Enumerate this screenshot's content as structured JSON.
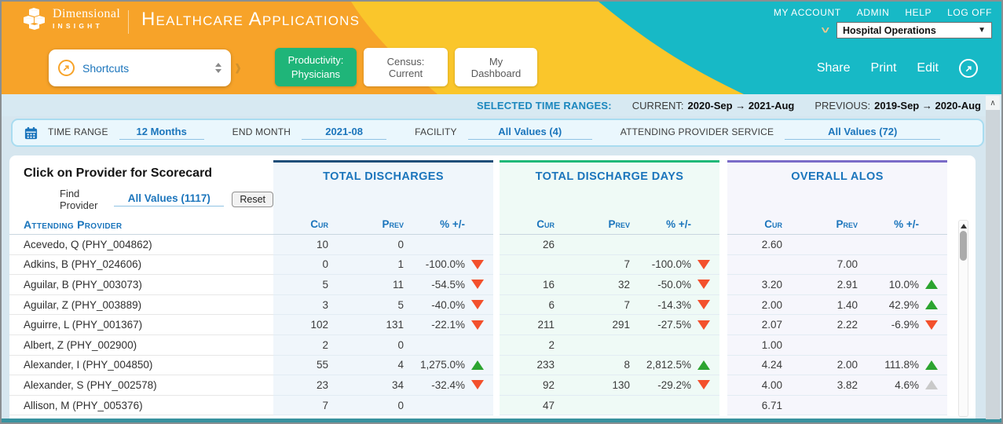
{
  "header": {
    "brand_top": "Dimensional",
    "brand_bottom": "INSIGHT",
    "app_title": "Healthcare Applications",
    "nav_links": [
      "MY ACCOUNT",
      "ADMIN",
      "HELP",
      "LOG OFF"
    ],
    "workspace_value": "Hospital Operations",
    "shortcuts_label": "Shortcuts",
    "tabs": [
      {
        "label": "Productivity: Physicians",
        "active": true
      },
      {
        "label": "Census: Current",
        "active": false
      },
      {
        "label": "My Dashboard",
        "active": false
      }
    ],
    "actions": [
      "Share",
      "Print",
      "Edit"
    ]
  },
  "time_ranges": {
    "title": "SELECTED TIME RANGES:",
    "current_label": "CURRENT:",
    "current_value": "2020-Sep → 2021-Aug",
    "previous_label": "PREVIOUS:",
    "previous_value": "2019-Sep → 2020-Aug"
  },
  "filters": [
    {
      "label": "TIME RANGE",
      "value": "12 Months"
    },
    {
      "label": "END MONTH",
      "value": "2021-08"
    },
    {
      "label": "FACILITY",
      "value": "All Values (4)"
    },
    {
      "label": "ATTENDING PROVIDER SERVICE",
      "value": "All Values (72)"
    }
  ],
  "table": {
    "instruction": "Click on Provider for Scorecard",
    "find_label": "Find Provider",
    "find_value": "All Values (1117)",
    "reset_label": "Reset",
    "provider_header": "Attending Provider",
    "groups": [
      {
        "title": "TOTAL DISCHARGES",
        "accent": "#1F4E79"
      },
      {
        "title": "TOTAL DISCHARGE DAYS",
        "accent": "#1FB878"
      },
      {
        "title": "OVERALL ALOS",
        "accent": "#7A6BC8"
      }
    ],
    "sub_headers": [
      "Cur",
      "Prev",
      "% +/-"
    ],
    "rows": [
      {
        "provider": "Acevedo, Q (PHY_004862)",
        "g1": {
          "cur": "10",
          "prev": "0",
          "pct": "",
          "trend": ""
        },
        "g2": {
          "cur": "26",
          "prev": "",
          "pct": "",
          "trend": ""
        },
        "g3": {
          "cur": "2.60",
          "prev": "",
          "pct": "",
          "trend": ""
        }
      },
      {
        "provider": "Adkins, B (PHY_024606)",
        "g1": {
          "cur": "0",
          "prev": "1",
          "pct": "-100.0%",
          "trend": "down"
        },
        "g2": {
          "cur": "",
          "prev": "7",
          "pct": "-100.0%",
          "trend": "down"
        },
        "g3": {
          "cur": "",
          "prev": "7.00",
          "pct": "",
          "trend": ""
        }
      },
      {
        "provider": "Aguilar, B (PHY_003073)",
        "g1": {
          "cur": "5",
          "prev": "11",
          "pct": "-54.5%",
          "trend": "down"
        },
        "g2": {
          "cur": "16",
          "prev": "32",
          "pct": "-50.0%",
          "trend": "down"
        },
        "g3": {
          "cur": "3.20",
          "prev": "2.91",
          "pct": "10.0%",
          "trend": "up"
        }
      },
      {
        "provider": "Aguilar, Z (PHY_003889)",
        "g1": {
          "cur": "3",
          "prev": "5",
          "pct": "-40.0%",
          "trend": "down"
        },
        "g2": {
          "cur": "6",
          "prev": "7",
          "pct": "-14.3%",
          "trend": "down"
        },
        "g3": {
          "cur": "2.00",
          "prev": "1.40",
          "pct": "42.9%",
          "trend": "up"
        }
      },
      {
        "provider": "Aguirre, L (PHY_001367)",
        "g1": {
          "cur": "102",
          "prev": "131",
          "pct": "-22.1%",
          "trend": "down"
        },
        "g2": {
          "cur": "211",
          "prev": "291",
          "pct": "-27.5%",
          "trend": "down"
        },
        "g3": {
          "cur": "2.07",
          "prev": "2.22",
          "pct": "-6.9%",
          "trend": "down"
        }
      },
      {
        "provider": "Albert, Z (PHY_002900)",
        "g1": {
          "cur": "2",
          "prev": "0",
          "pct": "",
          "trend": ""
        },
        "g2": {
          "cur": "2",
          "prev": "",
          "pct": "",
          "trend": ""
        },
        "g3": {
          "cur": "1.00",
          "prev": "",
          "pct": "",
          "trend": ""
        }
      },
      {
        "provider": "Alexander, I (PHY_004850)",
        "g1": {
          "cur": "55",
          "prev": "4",
          "pct": "1,275.0%",
          "trend": "up"
        },
        "g2": {
          "cur": "233",
          "prev": "8",
          "pct": "2,812.5%",
          "trend": "up"
        },
        "g3": {
          "cur": "4.24",
          "prev": "2.00",
          "pct": "111.8%",
          "trend": "up"
        }
      },
      {
        "provider": "Alexander, S (PHY_002578)",
        "g1": {
          "cur": "23",
          "prev": "34",
          "pct": "-32.4%",
          "trend": "down"
        },
        "g2": {
          "cur": "92",
          "prev": "130",
          "pct": "-29.2%",
          "trend": "down"
        },
        "g3": {
          "cur": "4.00",
          "prev": "3.82",
          "pct": "4.6%",
          "trend": "neutral"
        }
      },
      {
        "provider": "Allison, M (PHY_005376)",
        "g1": {
          "cur": "7",
          "prev": "0",
          "pct": "",
          "trend": ""
        },
        "g2": {
          "cur": "47",
          "prev": "",
          "pct": "",
          "trend": ""
        },
        "g3": {
          "cur": "6.71",
          "prev": "",
          "pct": "",
          "trend": ""
        }
      }
    ]
  },
  "colors": {
    "header_orange": "#F7A329",
    "header_yellow": "#FAC62B",
    "header_teal": "#17B9C6",
    "active_tab_green": "#1FB579",
    "link_blue": "#1B75BC",
    "strip_blue": "#D7E9F2",
    "trend_up": "#2CA430",
    "trend_down": "#F3502C",
    "trend_neutral": "#C9C9C9"
  },
  "icons": {
    "logo": "cubes-icon",
    "shortcuts": "arrow-up-right-circle-icon",
    "expand": "chevron-right-icon",
    "workspace": "chevron-down-icon",
    "filter": "calendar-icon",
    "share_area": "arrow-up-right-circle-icon",
    "scroll": "scroll-up-arrow-icon"
  }
}
